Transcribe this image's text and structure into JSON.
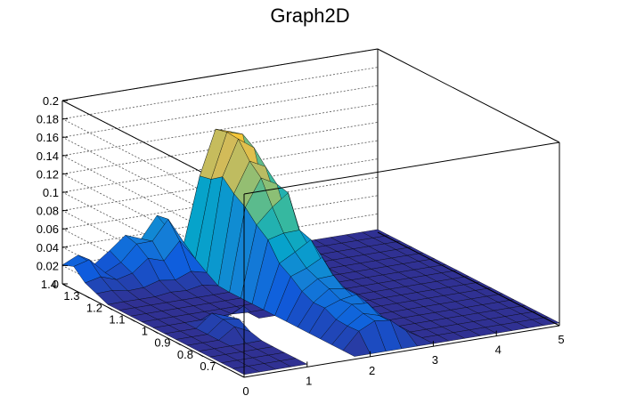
{
  "chart_data": {
    "type": "surface3d",
    "title": "Graph2D",
    "xlabel": "",
    "ylabel": "",
    "zlabel": "",
    "xlim": [
      0,
      5
    ],
    "ylim": [
      0.6,
      1.4
    ],
    "zlim": [
      0,
      0.2
    ],
    "x_ticks": [
      0,
      1,
      2,
      3,
      4,
      5
    ],
    "x_tick_labels": [
      "0",
      "1",
      "2",
      "3",
      "4",
      "5"
    ],
    "y_ticks": [
      0.7,
      0.8,
      0.9,
      1.0,
      1.1,
      1.2,
      1.3,
      1.4
    ],
    "y_tick_labels": [
      "0.7",
      "0.8",
      "0.9",
      "1",
      "1.1",
      "1.2",
      "1.3",
      "1.4"
    ],
    "z_ticks": [
      0,
      0.02,
      0.04,
      0.06,
      0.08,
      0.1,
      0.12,
      0.14,
      0.16,
      0.18,
      0.2
    ],
    "z_tick_labels": [
      "0",
      "0.02",
      "0.04",
      "0.06",
      "0.08",
      "0.1",
      "0.12",
      "0.14",
      "0.16",
      "0.18",
      "0.2"
    ],
    "grid": true,
    "colormap": [
      "#352a87",
      "#0f5cdd",
      "#1481d6",
      "#06a4ca",
      "#2eb7a4",
      "#87bf77",
      "#d1bb59",
      "#fec832",
      "#f9fb0e"
    ],
    "grid_x": [
      0,
      0.25,
      0.5,
      0.75,
      1,
      1.25,
      1.5,
      1.75,
      2,
      2.25,
      2.5,
      2.75,
      3,
      3.25,
      3.5,
      3.75,
      4,
      4.25,
      4.5,
      4.75,
      5
    ],
    "grid_y": [
      0.6,
      0.65,
      0.7,
      0.75,
      0.8,
      0.85,
      0.9,
      0.95,
      1.0,
      1.05,
      1.1,
      1.15,
      1.2,
      1.25,
      1.3,
      1.35,
      1.4
    ],
    "surface": {
      "background_level": 0.003,
      "ridge": {
        "x_range": [
          1.8,
          2.85
        ],
        "y_range": [
          0.65,
          1.35
        ],
        "peak_z": 0.17,
        "peak_y": 1.25
      },
      "back_bumps": [
        {
          "x": 0.2,
          "y": 1.38,
          "z": 0.04
        },
        {
          "x": 1.0,
          "y": 1.38,
          "z": 0.05
        },
        {
          "x": 1.5,
          "y": 1.38,
          "z": 0.07
        }
      ],
      "front_spikes": {
        "x_range": [
          0.6,
          1.4
        ],
        "y": 0.9,
        "z": 0.035
      },
      "hole": {
        "x_range": [
          0.9,
          1.8
        ],
        "y_range": [
          0.6,
          0.95
        ]
      }
    }
  }
}
